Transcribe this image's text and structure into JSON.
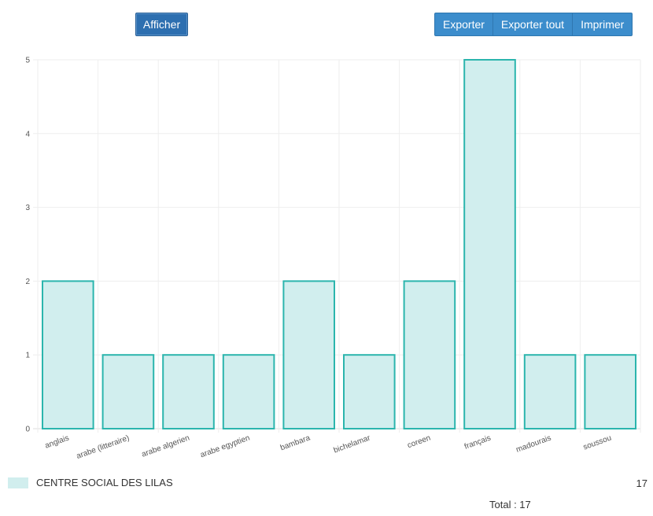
{
  "toolbar": {
    "show_label": "Afficher",
    "export_label": "Exporter",
    "export_all_label": "Exporter tout",
    "print_label": "Imprimer"
  },
  "colors": {
    "bar_fill": "#d1eeee",
    "bar_stroke": "#2bb5ad",
    "grid": "#eeeeee",
    "button_primary": "#2d6fb0",
    "button_group": "#3c8dcc"
  },
  "chart_data": {
    "type": "bar",
    "categories": [
      "anglais",
      "arabe (litteraire)",
      "arabe algerien",
      "arabe egyptien",
      "bambara",
      "bichelamar",
      "coreen",
      "français",
      "madourais",
      "soussou"
    ],
    "series": [
      {
        "name": "CENTRE SOCIAL DES LILAS",
        "values": [
          2,
          1,
          1,
          1,
          2,
          1,
          2,
          5,
          1,
          1
        ]
      }
    ],
    "ylim": [
      0,
      5
    ],
    "yticks": [
      0,
      1,
      2,
      3,
      4,
      5
    ],
    "grid": true,
    "legend": "bottom-left"
  },
  "legend": {
    "label": "CENTRE SOCIAL DES LILAS",
    "count": "17"
  },
  "total": {
    "text": "Total :  17"
  }
}
